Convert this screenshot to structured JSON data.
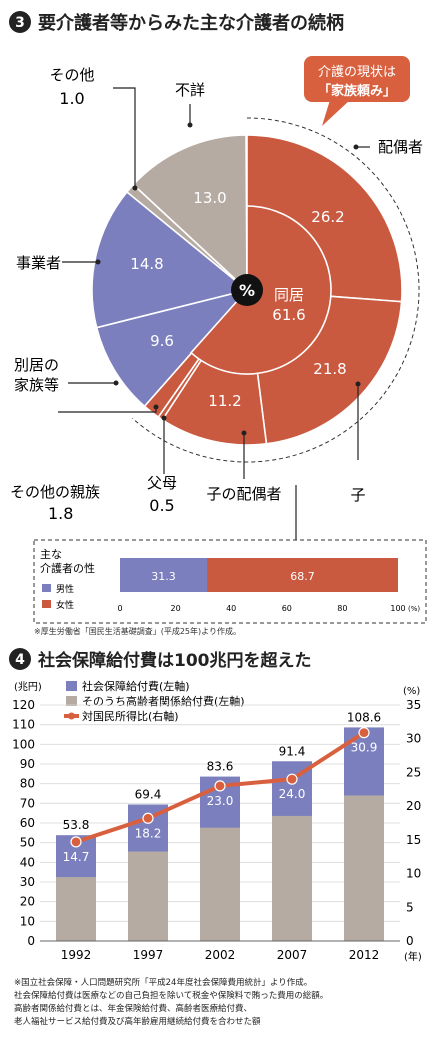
{
  "section1": {
    "number": "3",
    "title": "要介護者等からみた主な介護者の続柄",
    "center_symbol": "%",
    "callout_line1": "介護の現状は",
    "callout_line2": "「家族頼み」",
    "chart_data": {
      "type": "pie",
      "unit": "%",
      "outer": [
        {
          "name": "配偶者",
          "value": 26.2,
          "color": "#c95a40"
        },
        {
          "name": "子",
          "value": 21.8,
          "color": "#c95a40"
        },
        {
          "name": "子の配偶者",
          "value": 11.2,
          "color": "#c95a40"
        },
        {
          "name": "父母",
          "value": 0.5,
          "color": "#c95a40"
        },
        {
          "name": "その他の親族",
          "value": 1.8,
          "color": "#c95a40"
        },
        {
          "name": "別居の家族等",
          "value": 9.6,
          "color": "#7b7fbe"
        },
        {
          "name": "事業者",
          "value": 14.8,
          "color": "#7b7fbe"
        },
        {
          "name": "その他",
          "value": 1.0,
          "color": "#b6aba3"
        },
        {
          "name": "不詳",
          "value": 13.0,
          "color": "#b6aba3"
        }
      ],
      "inner": {
        "name": "同居",
        "value": 61.6
      },
      "labels": {
        "haigusha": "配偶者",
        "ko": "子",
        "ko_no_haigusha": "子の配偶者",
        "fubo": "父母",
        "fubo_value": "0.5",
        "sonota_shinzoku": "その他の親族",
        "sonota_shinzoku_value": "1.8",
        "bekkyo_line1": "別居の",
        "bekkyo_line2": "家族等",
        "jigyosha": "事業者",
        "sonota": "その他",
        "sonota_value": "1.0",
        "fusho": "不詳",
        "in_haigusha": "26.2",
        "in_ko": "21.8",
        "in_ko_haigusha": "11.2",
        "in_bekkyo": "9.6",
        "in_jigyosha": "14.8",
        "in_fusho": "13.0",
        "doukyo_label": "同居",
        "doukyo_value": "61.6"
      }
    },
    "gender": {
      "title_line1": "主な",
      "title_line2": "介護者の性",
      "legend_male": "男性",
      "legend_female": "女性",
      "male_value": 31.3,
      "female_value": 68.7,
      "male_label": "31.3",
      "female_label": "68.7",
      "male_color": "#7b7fbe",
      "female_color": "#c95a40",
      "ticks": [
        "0",
        "20",
        "40",
        "60",
        "80",
        "100"
      ],
      "unit": "(%)"
    },
    "source": "※厚生労働省「国民生活基礎調査」(平成25年)より作成。"
  },
  "section2": {
    "number": "4",
    "title": "社会保障給付費は100兆円を超えた",
    "left_unit": "(兆円)",
    "right_unit": "(%)",
    "year_unit": "(年)",
    "legend": [
      {
        "label": "社会保障給付費(左軸)",
        "color": "#7b7fbe"
      },
      {
        "label": "そのうち高齢者関係給付費(左軸)",
        "color": "#b6aba3"
      },
      {
        "label": "対国民所得比(右軸)",
        "color": "#d9603f"
      }
    ],
    "chart_data": {
      "type": "bar",
      "categories": [
        "1992",
        "1997",
        "2002",
        "2007",
        "2012"
      ],
      "series": [
        {
          "name": "社会保障給付費(左軸)",
          "values": [
            53.8,
            69.4,
            83.6,
            91.4,
            108.6
          ],
          "color": "#7b7fbe"
        },
        {
          "name": "そのうち高齢者関係給付費(左軸)",
          "values": [
            32.5,
            45.5,
            57.6,
            63.6,
            74.0
          ],
          "color": "#b6aba3"
        },
        {
          "name": "対国民所得比(右軸)",
          "values": [
            14.7,
            18.2,
            23.0,
            24.0,
            30.9
          ],
          "color": "#d9603f"
        }
      ],
      "total_labels": [
        "53.8",
        "69.4",
        "83.6",
        "91.4",
        "108.6"
      ],
      "ratio_labels": [
        "14.7",
        "18.2",
        "23.0",
        "24.0",
        "30.9"
      ],
      "left_ticks": [
        "0",
        "10",
        "20",
        "30",
        "40",
        "50",
        "60",
        "70",
        "80",
        "90",
        "100",
        "110",
        "120"
      ],
      "right_ticks": [
        "0",
        "5",
        "10",
        "15",
        "20",
        "25",
        "30",
        "35"
      ],
      "ylim_left": [
        0,
        120
      ],
      "ylim_right": [
        0,
        35
      ]
    },
    "notes": [
      "※国立社会保障・人口問題研究所「平成24年度社会保障費用統計」より作成。",
      "社会保障給付費は医療などの自己負担を除いて税金や保険料で賄った費用の総額。",
      "高齢者関係給付費とは、年金保険給付費、高齢者医療給付費、",
      "老人福祉サービス給付費及び高年齢雇用継続給付費を合わせた額"
    ]
  }
}
